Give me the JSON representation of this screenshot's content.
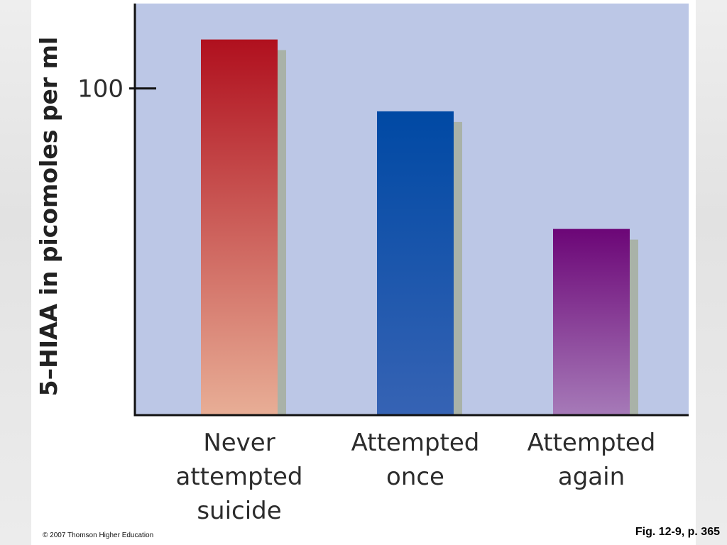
{
  "chart_data": {
    "type": "bar",
    "title": "",
    "ylabel": "5–HIAA in picomoles per ml",
    "xlabel": "",
    "ylim": [
      0,
      126
    ],
    "yticks": [
      100
    ],
    "grid": false,
    "categories": [
      [
        "Never",
        "attempted",
        "suicide"
      ],
      [
        "Attempted",
        "once"
      ],
      [
        "Attempted",
        "again"
      ]
    ],
    "values": [
      115,
      93,
      57
    ],
    "colors": [
      {
        "top": "#b0101e",
        "bottom": "#e8ae96"
      },
      {
        "top": "#0049a4",
        "bottom": "#3663b4"
      },
      {
        "top": "#6c0677",
        "bottom": "#a67ab8"
      }
    ],
    "plot_background": "#bcc7e6"
  },
  "footer": {
    "copyright": "© 2007 Thomson Higher Education",
    "figure_ref": "Fig. 12-9, p. 365"
  }
}
